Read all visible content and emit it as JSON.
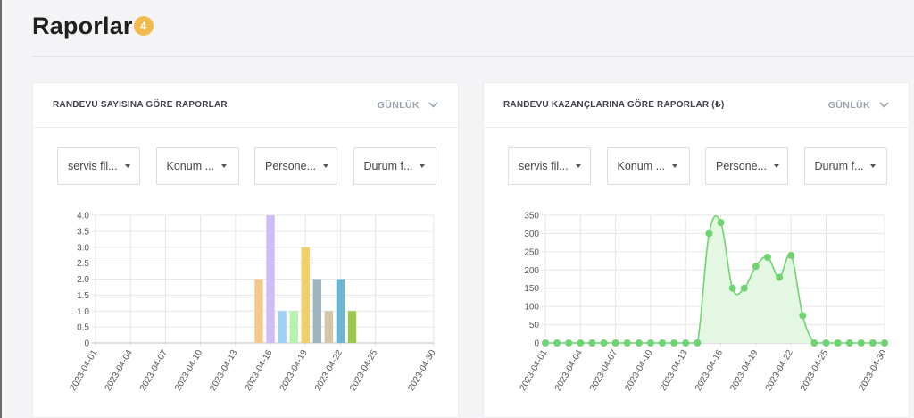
{
  "page": {
    "title": "Raporlar",
    "badge": "4"
  },
  "cards": [
    {
      "title": "RANDEVU SAYISINA GÖRE RAPORLAR",
      "period": "GÜNLÜK",
      "filters": [
        "servis fil...",
        "Konum ...",
        "Persone...",
        "Durum f..."
      ]
    },
    {
      "title": "RANDEVU KAZANÇLARINA GÖRE RAPORLAR (₺)",
      "period": "GÜNLÜK",
      "filters": [
        "servis fil...",
        "Konum ...",
        "Persone...",
        "Durum f..."
      ]
    }
  ],
  "chart_data": [
    {
      "type": "bar",
      "categories": [
        "2023-04-01",
        "2023-04-02",
        "2023-04-03",
        "2023-04-04",
        "2023-04-05",
        "2023-04-06",
        "2023-04-07",
        "2023-04-08",
        "2023-04-09",
        "2023-04-10",
        "2023-04-11",
        "2023-04-12",
        "2023-04-13",
        "2023-04-14",
        "2023-04-15",
        "2023-04-16",
        "2023-04-17",
        "2023-04-18",
        "2023-04-19",
        "2023-04-20",
        "2023-04-21",
        "2023-04-22",
        "2023-04-23",
        "2023-04-24",
        "2023-04-25",
        "2023-04-26",
        "2023-04-27",
        "2023-04-28",
        "2023-04-29",
        "2023-04-30"
      ],
      "values": [
        0,
        0,
        0,
        0,
        0,
        0,
        0,
        0,
        0,
        0,
        0,
        0,
        0,
        0,
        2,
        4,
        1,
        1,
        3,
        2,
        1,
        2,
        1,
        0,
        0,
        0,
        0,
        0,
        0,
        0
      ],
      "bar_colors": {
        "2023-04-15": "#f2c98a",
        "2023-04-16": "#cdbcf5",
        "2023-04-17": "#9fd1f5",
        "2023-04-18": "#b5f2ac",
        "2023-04-19": "#f0cf6a",
        "2023-04-20": "#9fb5c4",
        "2023-04-21": "#d3c5a8",
        "2023-04-22": "#6cb6d2",
        "2023-04-23": "#9bc74b"
      },
      "x_tick_labels": [
        "2023-04-01",
        "2023-04-04",
        "2023-04-07",
        "2023-04-10",
        "2023-04-13",
        "2023-04-16",
        "2023-04-19",
        "2023-04-22",
        "2023-04-25",
        "2023-04-30"
      ],
      "y_ticks": [
        "0",
        "0.5",
        "1.0",
        "1.5",
        "2.0",
        "2.5",
        "3.0",
        "3.5",
        "4.0"
      ],
      "ylim": [
        0,
        4
      ],
      "grid": true
    },
    {
      "type": "area",
      "x": [
        "2023-04-01",
        "2023-04-02",
        "2023-04-03",
        "2023-04-04",
        "2023-04-05",
        "2023-04-06",
        "2023-04-07",
        "2023-04-08",
        "2023-04-09",
        "2023-04-10",
        "2023-04-11",
        "2023-04-12",
        "2023-04-13",
        "2023-04-14",
        "2023-04-15",
        "2023-04-16",
        "2023-04-17",
        "2023-04-18",
        "2023-04-19",
        "2023-04-20",
        "2023-04-21",
        "2023-04-22",
        "2023-04-23",
        "2023-04-24",
        "2023-04-25",
        "2023-04-26",
        "2023-04-27",
        "2023-04-28",
        "2023-04-29",
        "2023-04-30"
      ],
      "values": [
        0,
        0,
        0,
        0,
        0,
        0,
        0,
        0,
        0,
        0,
        0,
        0,
        0,
        0,
        300,
        330,
        150,
        150,
        210,
        235,
        180,
        240,
        75,
        0,
        0,
        0,
        0,
        0,
        0,
        0
      ],
      "x_tick_labels": [
        "2023-04-01",
        "2023-04-04",
        "2023-04-07",
        "2023-04-10",
        "2023-04-13",
        "2023-04-16",
        "2023-04-19",
        "2023-04-22",
        "2023-04-25",
        "2023-04-30"
      ],
      "y_ticks": [
        "0",
        "50",
        "100",
        "150",
        "200",
        "250",
        "300",
        "350"
      ],
      "ylim": [
        0,
        350
      ],
      "line_color": "#6fd46f",
      "fill_color": "#e3f7e3",
      "grid": true
    }
  ]
}
